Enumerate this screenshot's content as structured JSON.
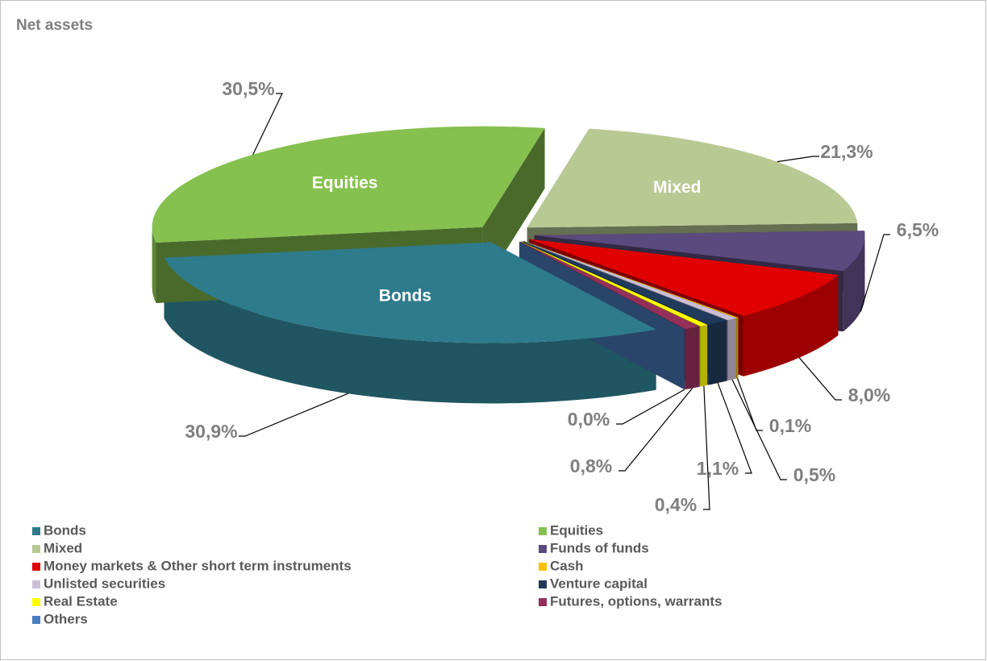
{
  "chart_data": {
    "type": "pie",
    "title": "Net assets",
    "categories": [
      "Bonds",
      "Equities",
      "Mixed",
      "Funds of funds",
      "Money markets & Other short term instruments",
      "Cash",
      "Unlisted securities",
      "Venture capital",
      "Real Estate",
      "Futures, options, warrants",
      "Others"
    ],
    "values": [
      30.9,
      30.5,
      21.3,
      6.5,
      8.0,
      0.1,
      0.5,
      1.1,
      0.4,
      0.8,
      0.0
    ],
    "value_labels": [
      "30,9%",
      "30,5%",
      "21,3%",
      "6,5%",
      "8,0%",
      "0,1%",
      "0,5%",
      "1,1%",
      "0,4%",
      "0,8%",
      "0,0%"
    ],
    "colors": [
      "#2e7b8c",
      "#86c04f",
      "#b8c993",
      "#5b4a7d",
      "#e00000",
      "#ffc000",
      "#cbbfd8",
      "#1f3a5a",
      "#ffff00",
      "#93305a",
      "#4a7ebf"
    ]
  }
}
